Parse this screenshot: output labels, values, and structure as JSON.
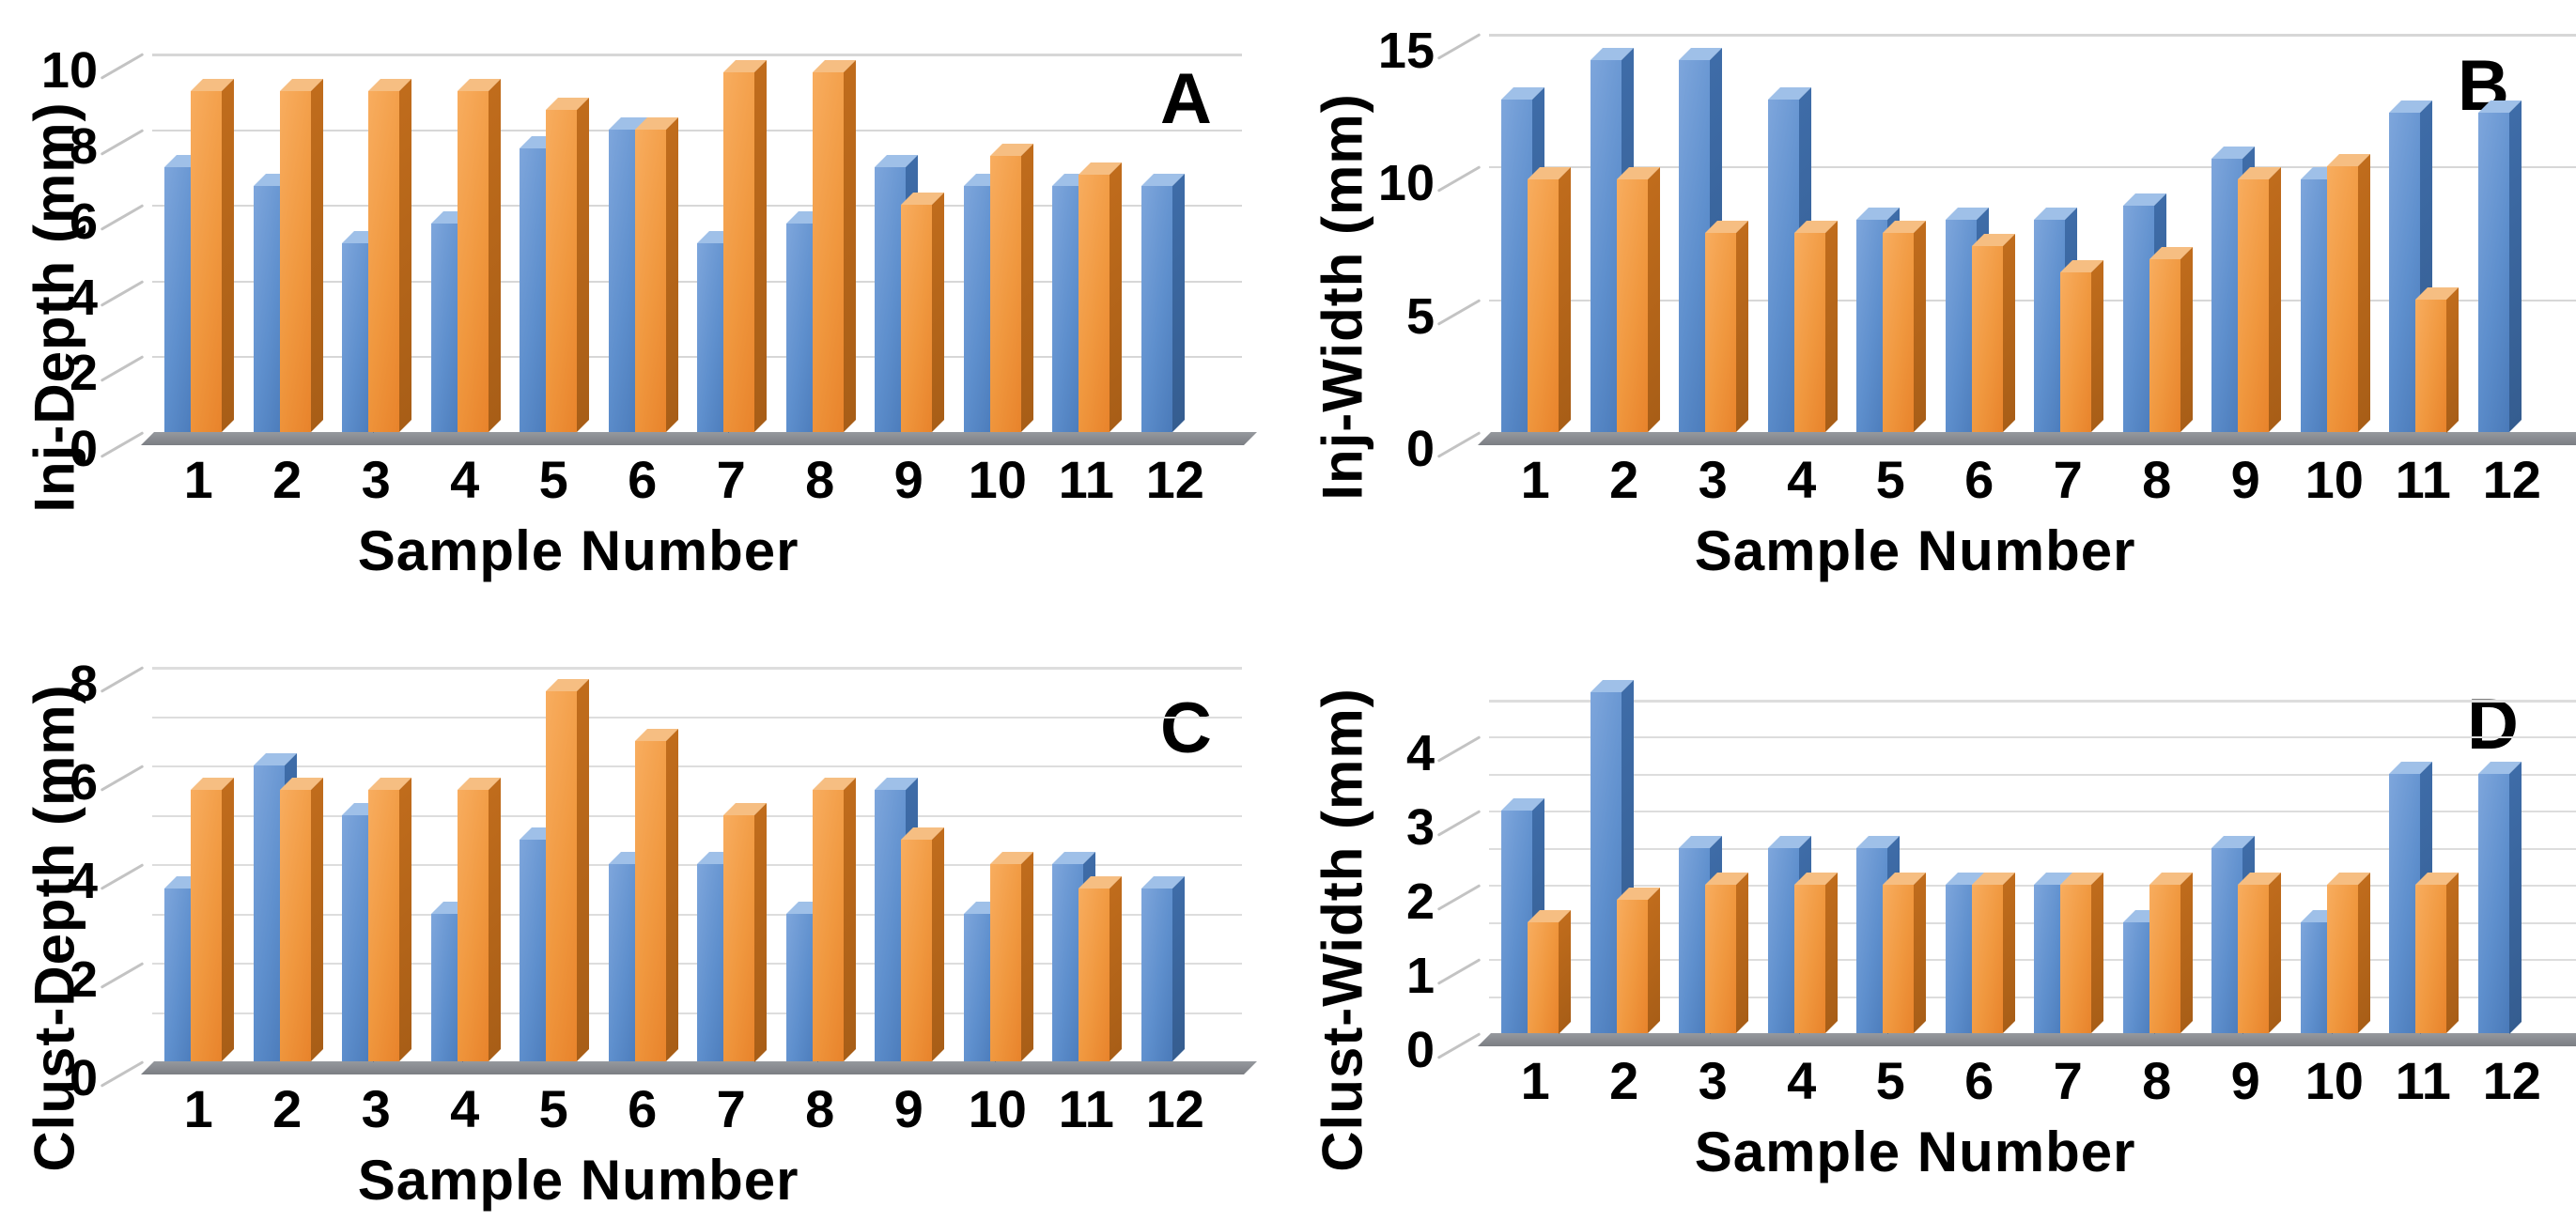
{
  "figure": {
    "background": "#ffffff",
    "x_axis_title": "Sample Number",
    "panel_letters": [
      "A",
      "B",
      "C",
      "D"
    ]
  },
  "colors": {
    "series_blue": "#5E8FCD",
    "series_orange": "#F0983F",
    "floor_gray": "#85888d",
    "gridline_gray": "#d7d7d7"
  },
  "chart_data": [
    {
      "type": "bar",
      "panel_letter": "A",
      "title": "",
      "ylabel": "Inj-Depth (mm)",
      "xlabel": "Sample Number",
      "categories": [
        "1",
        "2",
        "3",
        "4",
        "5",
        "6",
        "7",
        "8",
        "9",
        "10",
        "11",
        "12"
      ],
      "series": [
        {
          "name": "series-blue",
          "color": "#5E8FCD",
          "values": [
            7,
            6.5,
            5,
            5.5,
            7.5,
            8,
            5,
            5.5,
            7,
            6.5,
            6.5,
            6.5
          ]
        },
        {
          "name": "series-orange",
          "color": "#F0983F",
          "values": [
            9,
            9,
            9,
            9,
            8.5,
            8,
            9.5,
            9.5,
            6,
            7.3,
            6.8,
            null
          ]
        }
      ],
      "ylim": [
        0,
        10
      ],
      "yticks": [
        0,
        2,
        4,
        6,
        8,
        10
      ],
      "grid_values": [
        2,
        4,
        6,
        8,
        10
      ],
      "grid_color": "#d7d7d7",
      "grid": "on",
      "legend": "none"
    },
    {
      "type": "bar",
      "panel_letter": "B",
      "title": "",
      "ylabel": "Inj-Width (mm)",
      "xlabel": "Sample Number",
      "categories": [
        "1",
        "2",
        "3",
        "4",
        "5",
        "6",
        "7",
        "8",
        "9",
        "10",
        "11",
        "12"
      ],
      "series": [
        {
          "name": "series-blue",
          "color": "#5E8FCD",
          "values": [
            12.5,
            14,
            14,
            12.5,
            8,
            8,
            8,
            8.5,
            10.3,
            9.5,
            12,
            12
          ]
        },
        {
          "name": "series-orange",
          "color": "#F0983F",
          "values": [
            9.5,
            9.5,
            7.5,
            7.5,
            7.5,
            7,
            6,
            6.5,
            9.5,
            10,
            5,
            null
          ]
        }
      ],
      "ylim": [
        0,
        15
      ],
      "yticks": [
        0,
        5,
        10,
        15
      ],
      "grid_values": [
        5,
        10,
        15
      ],
      "grid_color": "#d7d7d7",
      "grid": "on",
      "legend": "none"
    },
    {
      "type": "bar",
      "panel_letter": "C",
      "title": "",
      "ylabel": "Clust-Depth (mm)",
      "xlabel": "Sample Number",
      "categories": [
        "1",
        "2",
        "3",
        "4",
        "5",
        "6",
        "7",
        "8",
        "9",
        "10",
        "11",
        "12"
      ],
      "series": [
        {
          "name": "series-blue",
          "color": "#5E8FCD",
          "values": [
            3.5,
            6,
            5,
            3,
            4.5,
            4,
            4,
            3,
            5.5,
            3,
            4,
            3.5
          ]
        },
        {
          "name": "series-orange",
          "color": "#F0983F",
          "values": [
            5.5,
            5.5,
            5.5,
            5.5,
            7.5,
            6.5,
            5,
            5.5,
            4.5,
            4,
            3.5,
            null
          ]
        }
      ],
      "ylim": [
        0,
        8
      ],
      "yticks": [
        0,
        2,
        4,
        6,
        8
      ],
      "grid_values": [
        1,
        2,
        3,
        4,
        5,
        6,
        7,
        8
      ],
      "grid_color": "#dddddd",
      "grid": "on",
      "legend": "none"
    },
    {
      "type": "bar",
      "panel_letter": "D",
      "title": "",
      "ylabel": "Clust-Width (mm)",
      "xlabel": "Sample Number",
      "categories": [
        "1",
        "2",
        "3",
        "4",
        "5",
        "6",
        "7",
        "8",
        "9",
        "10",
        "11",
        "12"
      ],
      "series": [
        {
          "name": "series-blue",
          "color": "#5E8FCD",
          "values": [
            3,
            4.6,
            2.5,
            2.5,
            2.5,
            2,
            2,
            1.5,
            2.5,
            1.5,
            3.5,
            3.5
          ]
        },
        {
          "name": "series-orange",
          "color": "#F0983F",
          "values": [
            1.5,
            1.8,
            2,
            2,
            2,
            2,
            2,
            2,
            2,
            2,
            2,
            null
          ]
        }
      ],
      "ylim": [
        0,
        4.5
      ],
      "yticks": [
        0,
        1,
        2,
        3,
        4
      ],
      "grid_values": [
        0.5,
        1,
        1.5,
        2,
        2.5,
        3,
        3.5,
        4,
        4.5
      ],
      "grid_color": "#dddddd",
      "grid": "on",
      "legend": "none"
    }
  ]
}
